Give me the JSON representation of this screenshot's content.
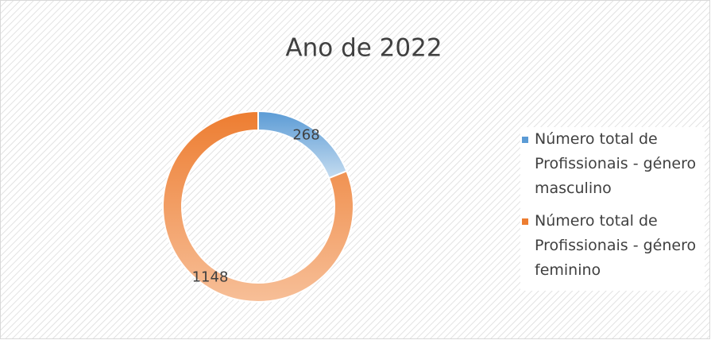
{
  "chart_data": {
    "type": "donut",
    "title": "Ano de 2022",
    "categories": [
      "Número total de Profissionais - género masculino",
      "Número total de Profissionais - género feminino"
    ],
    "values": [
      268,
      1148
    ],
    "colors": [
      "#5b9bd5",
      "#ed7d31"
    ],
    "legend": "right"
  }
}
